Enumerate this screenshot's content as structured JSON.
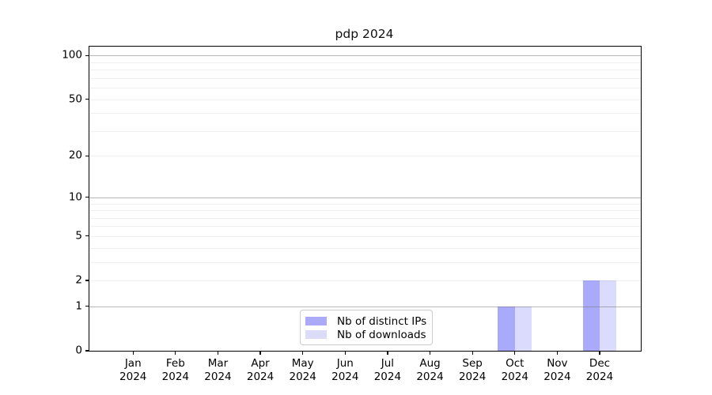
{
  "figure": {
    "background": "#ffffff"
  },
  "chart_data": {
    "type": "bar",
    "title": "pdp 2024",
    "categories": [
      "Jan",
      "Feb",
      "Mar",
      "Apr",
      "May",
      "Jun",
      "Jul",
      "Aug",
      "Sep",
      "Oct",
      "Nov",
      "Dec"
    ],
    "category_year": "2024",
    "series": [
      {
        "name": "Nb of distinct IPs",
        "color": "#aaaaf8",
        "fill": "rgba(0,0,240,0.335)",
        "values": [
          0,
          0,
          0,
          0,
          0,
          0,
          0,
          0,
          0,
          1,
          0,
          2
        ]
      },
      {
        "name": "Nb of downloads",
        "color": "#dcdcf9",
        "fill": "rgba(0,0,240,0.14)",
        "values": [
          0,
          0,
          0,
          0,
          0,
          0,
          0,
          0,
          0,
          1,
          0,
          2
        ]
      }
    ],
    "xlabel": "",
    "ylabel": "",
    "yscale": "log1p",
    "ylim": [
      0,
      115
    ],
    "yticks": [
      0,
      1,
      2,
      5,
      10,
      20,
      50,
      100
    ],
    "major_gridlines": [
      1,
      10,
      100
    ],
    "minor_gridlines": [
      2,
      3,
      4,
      5,
      6,
      7,
      8,
      9,
      20,
      30,
      40,
      50,
      60,
      70,
      80,
      90
    ],
    "grid_major_color": "rgba(110,110,110,0.5)",
    "grid_minor_color": "#efefef",
    "legend_position": "lower center"
  }
}
